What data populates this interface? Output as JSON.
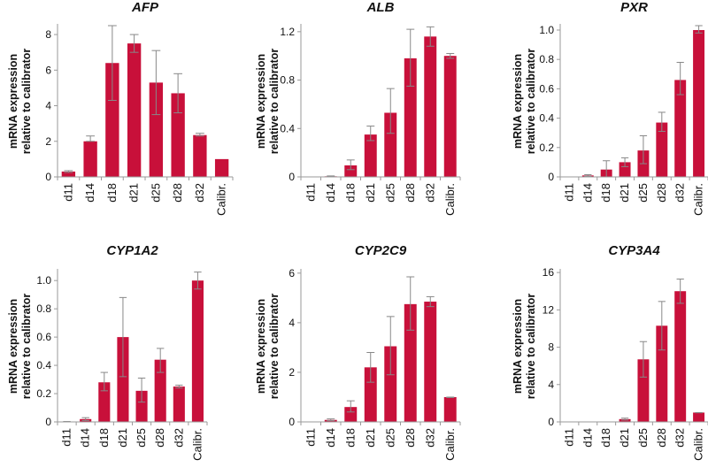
{
  "bar_color": "#c8103a",
  "error_color": "#888888",
  "axis_color": "#9a9a9a",
  "chart_data": [
    {
      "type": "bar",
      "title": "AFP",
      "xlabel": "",
      "ylabel": "mRNA expression relative to calibrator",
      "ylabel_lines": [
        "mRNA expression",
        "relative to calibrator"
      ],
      "categories": [
        "d11",
        "d14",
        "d18",
        "d21",
        "d25",
        "d28",
        "d32",
        "Calibr."
      ],
      "values": [
        0.3,
        2.0,
        6.4,
        7.5,
        5.3,
        4.7,
        2.35,
        1.0
      ],
      "err_hi": [
        0.35,
        2.3,
        8.5,
        8.0,
        7.1,
        5.8,
        2.45,
        1.0
      ],
      "err_lo": [
        0.25,
        2.0,
        4.3,
        7.0,
        3.5,
        3.6,
        2.3,
        1.0
      ],
      "ylim": [
        0,
        8.5
      ],
      "yticks": [
        0,
        2,
        4,
        6,
        8
      ],
      "ytick_labels": [
        "0",
        "2",
        "4",
        "6",
        "8"
      ]
    },
    {
      "type": "bar",
      "title": "ALB",
      "xlabel": "",
      "ylabel": "mRNA expression relative to calibrator",
      "ylabel_lines": [
        "mRNA expression",
        "relative to calibrator"
      ],
      "categories": [
        "d11",
        "d14",
        "d18",
        "d21",
        "d25",
        "d28",
        "d32",
        "Calibr."
      ],
      "values": [
        0.0,
        0.005,
        0.095,
        0.35,
        0.53,
        0.98,
        1.16,
        1.0
      ],
      "err_hi": [
        0.0,
        0.008,
        0.14,
        0.42,
        0.73,
        1.22,
        1.24,
        1.02
      ],
      "err_lo": [
        0.0,
        0.003,
        0.06,
        0.3,
        0.36,
        0.75,
        1.08,
        0.98
      ],
      "ylim": [
        0,
        1.25
      ],
      "yticks": [
        0,
        0.4,
        0.8,
        1.2
      ],
      "ytick_labels": [
        "0",
        "0.4",
        "0.8",
        "1.2"
      ]
    },
    {
      "type": "bar",
      "title": "PXR",
      "xlabel": "",
      "ylabel": "mRNA expression relative to calibrator",
      "ylabel_lines": [
        "mRNA expression",
        "relative to calibrator"
      ],
      "categories": [
        "d11",
        "d14",
        "d18",
        "d21",
        "d25",
        "d28",
        "d32",
        "Calibr."
      ],
      "values": [
        0.0,
        0.01,
        0.05,
        0.1,
        0.18,
        0.37,
        0.66,
        1.0
      ],
      "err_hi": [
        0.0,
        0.015,
        0.11,
        0.13,
        0.28,
        0.44,
        0.78,
        1.03
      ],
      "err_lo": [
        0.0,
        0.005,
        0.0,
        0.07,
        0.09,
        0.31,
        0.56,
        0.98
      ],
      "ylim": [
        0,
        1.03
      ],
      "yticks": [
        0,
        0.2,
        0.4,
        0.6,
        0.8,
        1.0
      ],
      "ytick_labels": [
        "0",
        "0.2",
        "0.4",
        "0.6",
        "0.8",
        "1.0"
      ]
    },
    {
      "type": "bar",
      "title": "CYP1A2",
      "xlabel": "",
      "ylabel": "mRNA expression relative to calibrator",
      "ylabel_lines": [
        "mRNA expression",
        "relative to calibrator"
      ],
      "categories": [
        "d11",
        "d14",
        "d18",
        "d21",
        "d25",
        "d28",
        "d32",
        "Calibr."
      ],
      "values": [
        0.0,
        0.02,
        0.28,
        0.6,
        0.22,
        0.44,
        0.25,
        1.0
      ],
      "err_hi": [
        0.003,
        0.03,
        0.35,
        0.88,
        0.31,
        0.52,
        0.26,
        1.06
      ],
      "err_lo": [
        0.0,
        0.01,
        0.22,
        0.32,
        0.14,
        0.35,
        0.24,
        0.94
      ],
      "ylim": [
        0,
        1.07
      ],
      "yticks": [
        0,
        0.2,
        0.4,
        0.6,
        0.8,
        1.0
      ],
      "ytick_labels": [
        "0",
        "0.2",
        "0.4",
        "0.6",
        "0.8",
        "1.0"
      ]
    },
    {
      "type": "bar",
      "title": "CYP2C9",
      "xlabel": "",
      "ylabel": "mRNA expression relative to calibrator",
      "ylabel_lines": [
        "mRNA expression",
        "relative to calibrator"
      ],
      "categories": [
        "d11",
        "d14",
        "d18",
        "d21",
        "d25",
        "d28",
        "d32",
        "Calibr."
      ],
      "values": [
        0.0,
        0.08,
        0.6,
        2.2,
        3.05,
        4.75,
        4.85,
        1.0
      ],
      "err_hi": [
        0.0,
        0.12,
        0.85,
        2.8,
        4.25,
        5.85,
        5.05,
        1.0
      ],
      "err_lo": [
        0.0,
        0.05,
        0.4,
        1.6,
        1.9,
        3.7,
        4.65,
        0.98
      ],
      "ylim": [
        0,
        6.1
      ],
      "yticks": [
        0,
        2,
        4,
        6
      ],
      "ytick_labels": [
        "0",
        "2",
        "4",
        "6"
      ]
    },
    {
      "type": "bar",
      "title": "CYP3A4",
      "xlabel": "",
      "ylabel": "mRNA expression relative to calibrator",
      "ylabel_lines": [
        "mRNA expression",
        "relative to calibrator"
      ],
      "categories": [
        "d11",
        "d14",
        "d18",
        "d21",
        "d25",
        "d28",
        "d32",
        "Calibr."
      ],
      "values": [
        0.0,
        0.0,
        0.0,
        0.3,
        6.7,
        10.3,
        14.0,
        1.0
      ],
      "err_hi": [
        0.0,
        0.0,
        0.0,
        0.4,
        8.6,
        12.9,
        15.3,
        1.0
      ],
      "err_lo": [
        0.0,
        0.0,
        0.0,
        0.2,
        4.8,
        7.7,
        12.7,
        0.98
      ],
      "ylim": [
        0,
        16.2
      ],
      "yticks": [
        0,
        4,
        8,
        12,
        16
      ],
      "ytick_labels": [
        "0",
        "4",
        "8",
        "12",
        "16"
      ]
    }
  ]
}
